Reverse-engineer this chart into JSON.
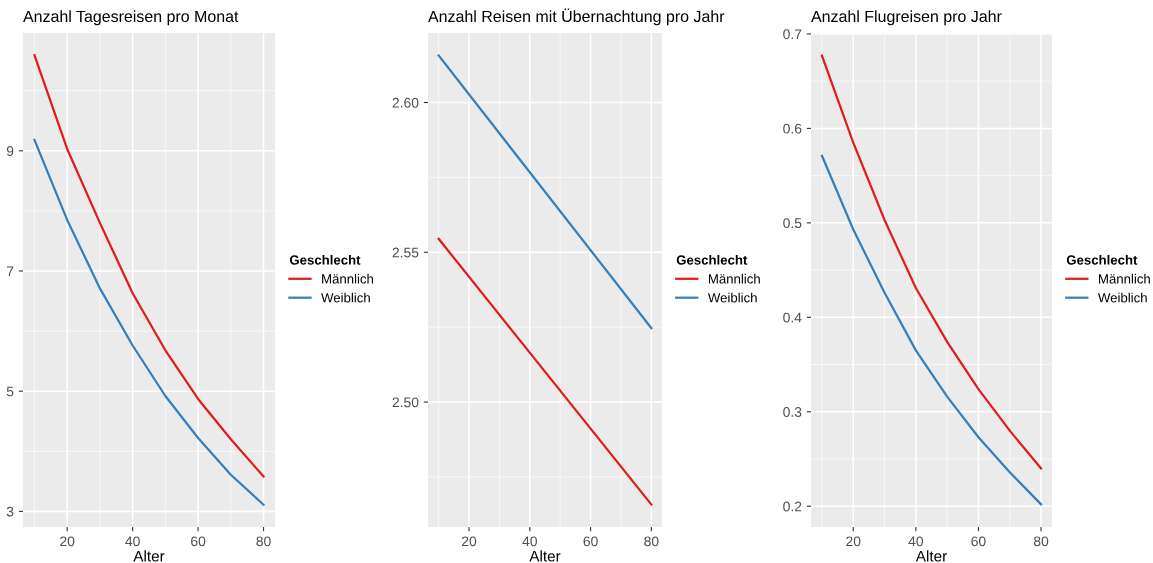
{
  "chart_data": [
    {
      "type": "line",
      "title": "Anzahl Tagesreisen pro Monat",
      "xlabel": "Alter",
      "legend_title": "Geschlecht",
      "legend": "right",
      "grid": true,
      "x": [
        10,
        20,
        30,
        40,
        50,
        60,
        70,
        80
      ],
      "xlim": [
        6.5,
        83.5
      ],
      "xticks": [
        20,
        40,
        60,
        80
      ],
      "ylim": [
        2.74,
        10.96
      ],
      "yticks": [
        3,
        5,
        7,
        9
      ],
      "series": [
        {
          "name": "Männlich",
          "color": "#e41a1c",
          "values": [
            10.59,
            9.03,
            7.8,
            6.63,
            5.68,
            4.87,
            4.2,
            3.58
          ]
        },
        {
          "name": "Weiblich",
          "color": "#377eb8",
          "values": [
            9.18,
            7.85,
            6.71,
            5.76,
            4.92,
            4.22,
            3.61,
            3.11
          ]
        }
      ]
    },
    {
      "type": "line",
      "title": "Anzahl Reisen mit Übernachtung pro Jahr",
      "xlabel": "Alter",
      "legend_title": "Geschlecht",
      "legend": "right",
      "grid": true,
      "x": [
        10,
        80
      ],
      "xlim": [
        6.5,
        83.5
      ],
      "xticks": [
        20,
        40,
        60,
        80
      ],
      "ylim": [
        2.4583,
        2.6232
      ],
      "yticks": [
        {
          "value": 2.5,
          "label": "2.50"
        },
        {
          "value": 2.55,
          "label": "2.55"
        },
        {
          "value": 2.6,
          "label": "2.60"
        }
      ],
      "series": [
        {
          "name": "Männlich",
          "color": "#e41a1c",
          "values": [
            2.5545,
            2.4658
          ]
        },
        {
          "name": "Weiblich",
          "color": "#377eb8",
          "values": [
            2.6157,
            2.5247
          ]
        }
      ]
    },
    {
      "type": "line",
      "title": "Anzahl Flugreisen pro Jahr",
      "xlabel": "Alter",
      "legend_title": "Geschlecht",
      "legend": "right",
      "grid": true,
      "x": [
        10,
        20,
        30,
        40,
        50,
        60,
        70,
        80
      ],
      "xlim": [
        6.5,
        83.5
      ],
      "xticks": [
        20,
        40,
        60,
        80
      ],
      "ylim": [
        0.178,
        0.701
      ],
      "yticks": [
        0.2,
        0.3,
        0.4,
        0.5,
        0.6,
        0.7
      ],
      "series": [
        {
          "name": "Männlich",
          "color": "#e41a1c",
          "values": [
            0.677,
            0.585,
            0.503,
            0.431,
            0.374,
            0.324,
            0.28,
            0.24
          ]
        },
        {
          "name": "Weiblich",
          "color": "#377eb8",
          "values": [
            0.571,
            0.493,
            0.426,
            0.365,
            0.316,
            0.273,
            0.236,
            0.202
          ]
        }
      ]
    }
  ]
}
